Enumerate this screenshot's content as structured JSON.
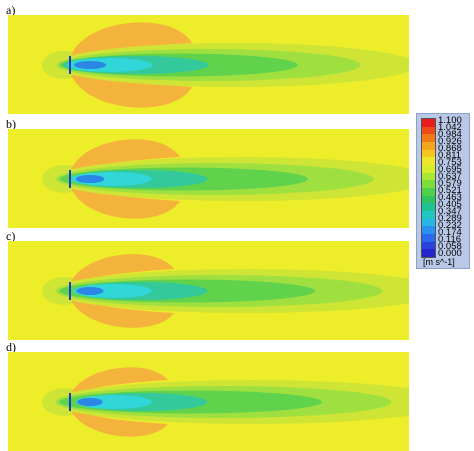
{
  "panels": [
    {
      "label": "a)"
    },
    {
      "label": "b)"
    },
    {
      "label": "c)"
    },
    {
      "label": "d)"
    }
  ],
  "legend": {
    "ticks": [
      "1.100",
      "1.042",
      "0.984",
      "0.926",
      "0.868",
      "0.811",
      "0.753",
      "0.695",
      "0.637",
      "0.579",
      "0.521",
      "0.463",
      "0.405",
      "0.347",
      "0.289",
      "0.232",
      "0.174",
      "0.116",
      "0.058",
      "0.000"
    ],
    "unit": "[m s^-1]",
    "colors": [
      "#e81c1c",
      "#ef4a1a",
      "#f2791a",
      "#f5a61e",
      "#f6c521",
      "#eee628",
      "#d4ee2c",
      "#a8e834",
      "#7ddd3e",
      "#4fcf4a",
      "#2ec45e",
      "#1fc392",
      "#20c6c0",
      "#26b7e6",
      "#2890ee",
      "#2a68ec",
      "#2a43e0",
      "#2425c8"
    ]
  },
  "colors": {
    "background": "#eded2a",
    "yellow_green": "#cfe535",
    "light_green": "#9fe040",
    "green": "#60d24c",
    "teal": "#34c99a",
    "cyan": "#30d6d8",
    "blue_core": "#2c86e6",
    "orange_lobe": "#f4b43c"
  }
}
